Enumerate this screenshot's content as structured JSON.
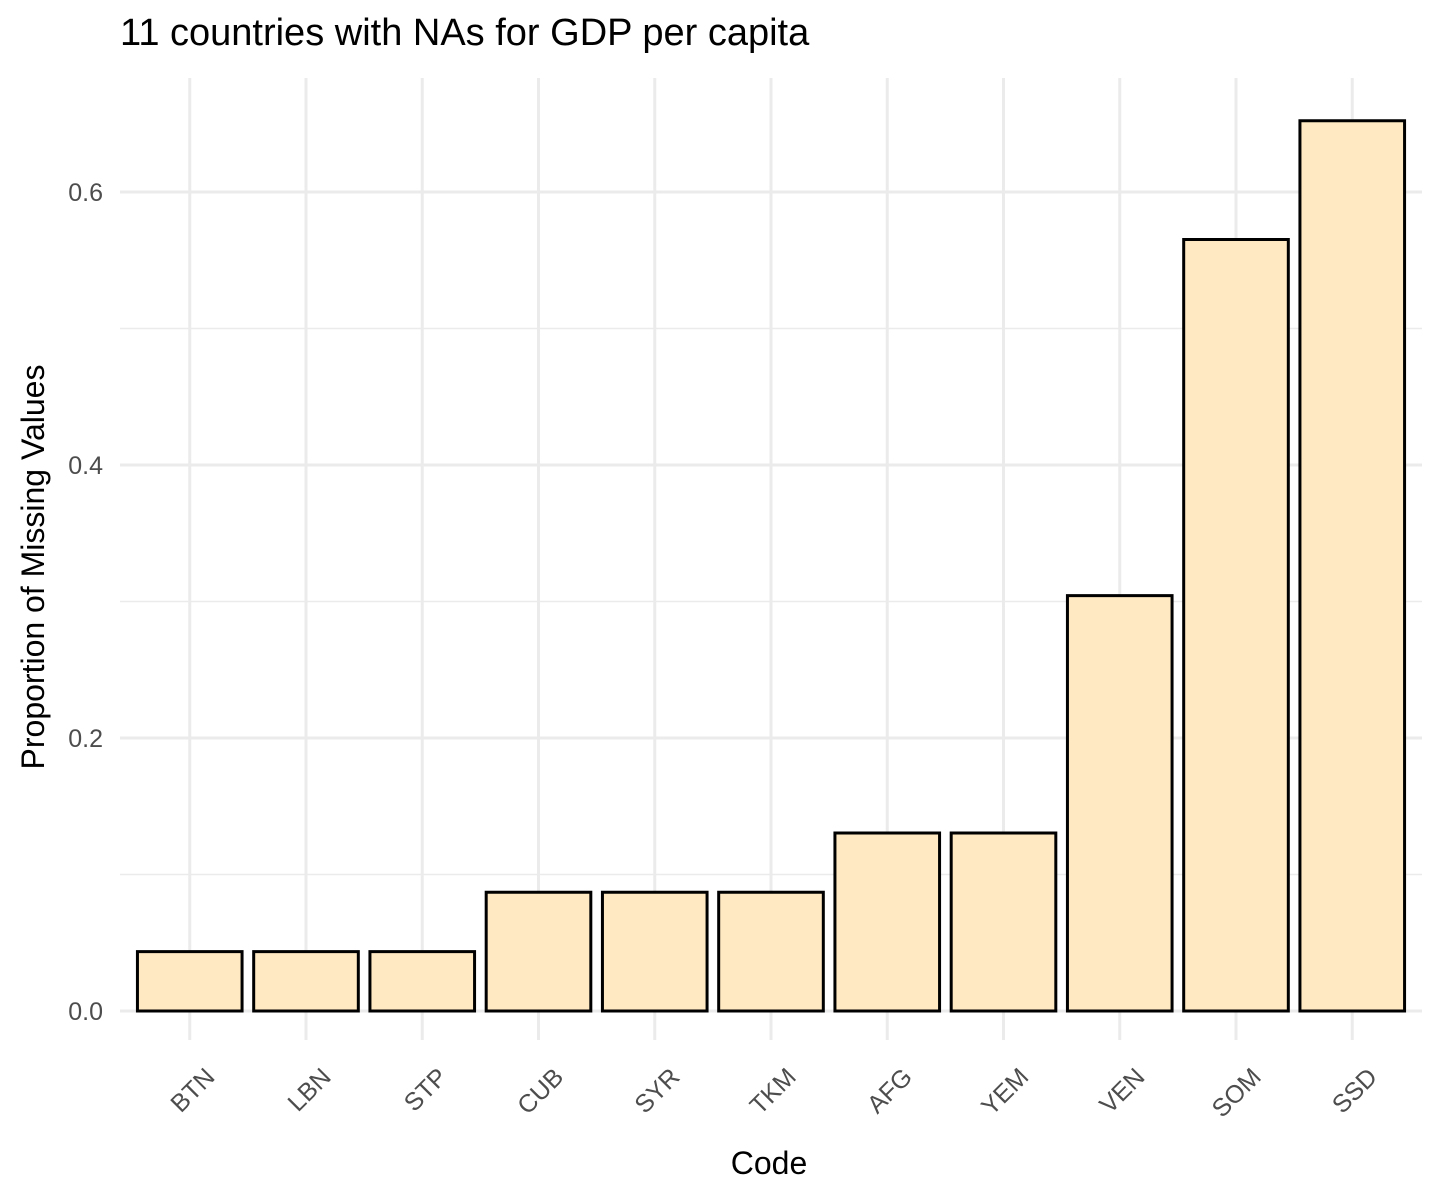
{
  "chart_data": {
    "type": "bar",
    "title": "11 countries with NAs for GDP per capita",
    "xlabel": "Code",
    "ylabel": "Proportion of Missing Values",
    "categories": [
      "BTN",
      "LBN",
      "STP",
      "CUB",
      "SYR",
      "TKM",
      "AFG",
      "YEM",
      "VEN",
      "SOM",
      "SSD"
    ],
    "values": [
      0.0435,
      0.0435,
      0.0435,
      0.087,
      0.087,
      0.087,
      0.1304,
      0.1304,
      0.3043,
      0.5652,
      0.6522
    ],
    "yticks": [
      0.0,
      0.2,
      0.4,
      0.6
    ],
    "ytick_labels": [
      "0.0",
      "0.2",
      "0.4",
      "0.6"
    ],
    "ylim": [
      -0.02,
      0.68
    ],
    "grid": true,
    "legend": "none",
    "bar_fill": "#FFE9C2",
    "bar_stroke": "#000000",
    "grid_color": "#EBEBEB"
  }
}
